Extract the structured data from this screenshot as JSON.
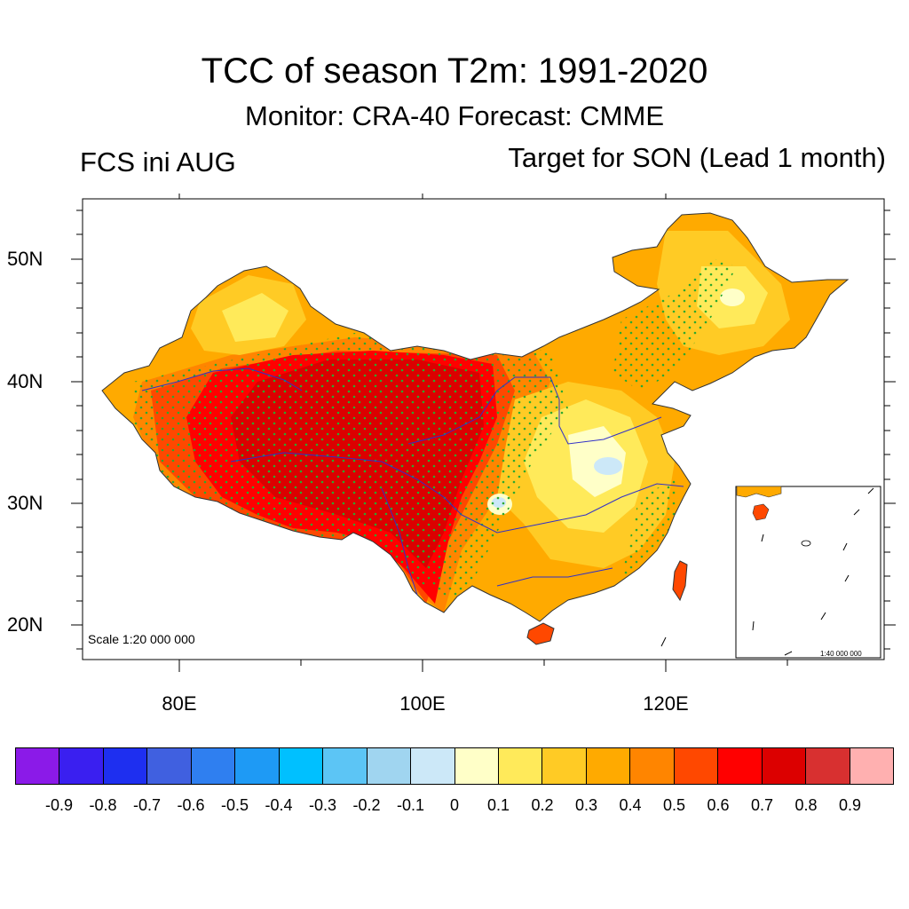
{
  "title": "TCC of season T2m: 1991-2020",
  "subtitle": "Monitor: CRA-40   Forecast: CMME",
  "left_label": "FCS ini AUG",
  "right_label": "Target for SON (Lead 1 month)",
  "scale_main": "Scale 1:20 000 000",
  "scale_inset": "1:40 000 000",
  "lat_labels": [
    "50N",
    "40N",
    "30N",
    "20N"
  ],
  "lon_labels": [
    "80E",
    "100E",
    "120E"
  ],
  "colorbar": {
    "colors": [
      "#8b1ae8",
      "#3a1ff0",
      "#1e2ff0",
      "#4060e0",
      "#2f7ff0",
      "#1e9af5",
      "#00c0ff",
      "#5cc5f5",
      "#a0d5f0",
      "#cce8f8",
      "#ffffc8",
      "#ffea5a",
      "#ffcb25",
      "#ffaa00",
      "#ff8500",
      "#ff4800",
      "#ff0000",
      "#dc0000",
      "#d83030",
      "#ffb0b0"
    ],
    "labels": [
      "-0.9",
      "-0.8",
      "-0.7",
      "-0.6",
      "-0.5",
      "-0.4",
      "-0.3",
      "-0.2",
      "-0.1",
      "0",
      "0.1",
      "0.2",
      "0.3",
      "0.4",
      "0.5",
      "0.6",
      "0.7",
      "0.8",
      "0.9"
    ]
  }
}
